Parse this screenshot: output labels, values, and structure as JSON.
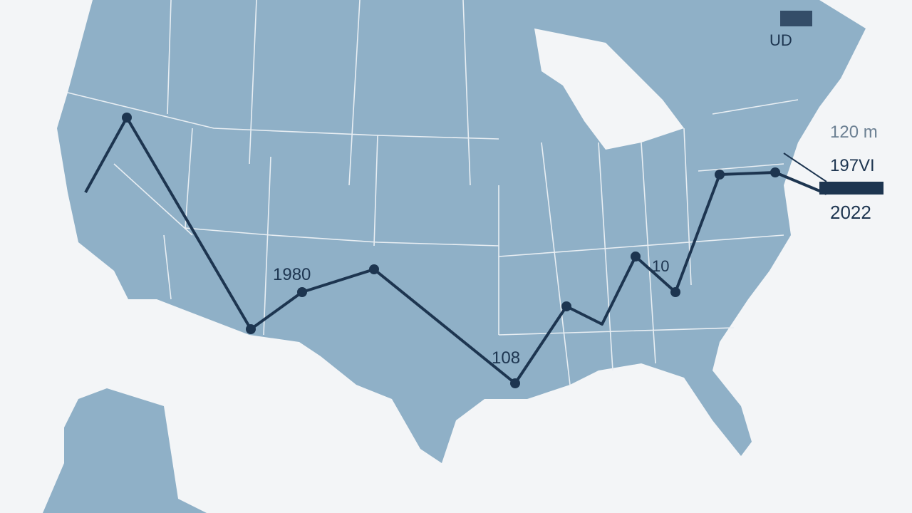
{
  "labels": {
    "start": "1980",
    "gulf": "108",
    "southeast": "10",
    "top_right": "UD",
    "right_1": "120 m",
    "right_2": "197VI",
    "end": "2022"
  }
}
